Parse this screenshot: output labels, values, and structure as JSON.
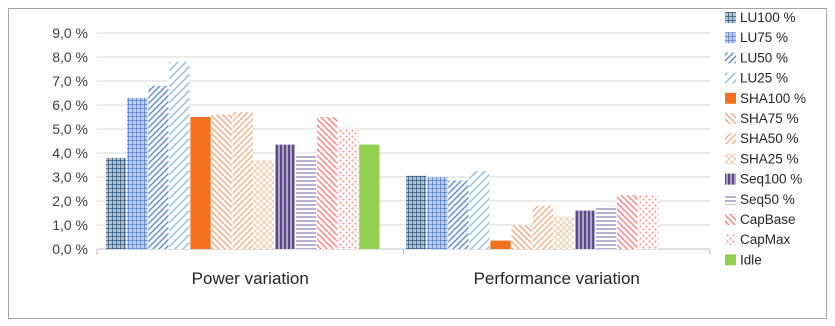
{
  "chart_data": {
    "type": "bar",
    "categories": [
      "Power variation",
      "Performance variation"
    ],
    "y_tick_labels": [
      "0,0 %",
      "1,0 %",
      "2,0 %",
      "3,0 %",
      "4,0 %",
      "5,0 %",
      "6,0 %",
      "7,0 %",
      "8,0 %",
      "9,0 %"
    ],
    "ylim": [
      0,
      9
    ],
    "y_unit": "%",
    "grid": true,
    "legend_position": "right",
    "series": [
      {
        "name": "LU100 %",
        "values": [
          3.8,
          3.05
        ],
        "color": "#1f4e79",
        "pattern": "grid"
      },
      {
        "name": "LU75 %",
        "values": [
          6.3,
          3.0
        ],
        "color": "#4472c4",
        "pattern": "grid"
      },
      {
        "name": "LU50 %",
        "values": [
          6.8,
          2.85
        ],
        "color": "#5b8bd6",
        "pattern": "diag"
      },
      {
        "name": "LU25 %",
        "values": [
          7.8,
          3.25
        ],
        "color": "#9dc3e6",
        "pattern": "diag-sparse"
      },
      {
        "name": "SHA100 %",
        "values": [
          5.5,
          0.35
        ],
        "color": "#f4701f",
        "pattern": "solid"
      },
      {
        "name": "SHA75 %",
        "values": [
          5.6,
          1.0
        ],
        "color": "#f4a582",
        "pattern": "diag-rev"
      },
      {
        "name": "SHA50 %",
        "values": [
          5.7,
          1.8
        ],
        "color": "#f4b183",
        "pattern": "diag"
      },
      {
        "name": "SHA25 %",
        "values": [
          3.7,
          1.35
        ],
        "color": "#f8cbad",
        "pattern": "cross"
      },
      {
        "name": "Seq100 %",
        "values": [
          4.35,
          1.6
        ],
        "color": "#5b4a8a",
        "pattern": "vert"
      },
      {
        "name": "Seq50 %",
        "values": [
          3.95,
          1.8
        ],
        "color": "#9c8ec4",
        "pattern": "horiz"
      },
      {
        "name": "CapBase",
        "values": [
          5.5,
          2.25
        ],
        "color": "#ff8080",
        "pattern": "diag-rev"
      },
      {
        "name": "CapMax",
        "values": [
          5.05,
          2.25
        ],
        "color": "#ff9a9a",
        "pattern": "dots"
      },
      {
        "name": "Idle",
        "values": [
          4.35,
          null
        ],
        "color": "#92d050",
        "pattern": "solid"
      }
    ]
  }
}
